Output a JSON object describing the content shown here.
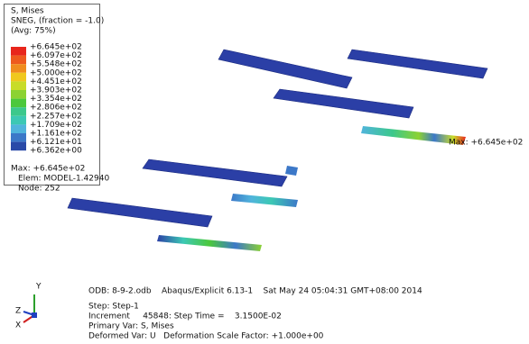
{
  "legend": {
    "title": [
      "S, Mises",
      "SNEG, (fraction = -1.0)",
      "(Avg: 75%)"
    ],
    "labels": [
      "+6.645e+02",
      "+6.097e+02",
      "+5.548e+02",
      "+5.000e+02",
      "+4.451e+02",
      "+3.903e+02",
      "+3.354e+02",
      "+2.806e+02",
      "+2.257e+02",
      "+1.709e+02",
      "+1.161e+02",
      "+6.121e+01",
      "+6.362e+00"
    ],
    "colors": [
      "#e8261c",
      "#ee5a1e",
      "#f08c1e",
      "#f0c81e",
      "#c8dc28",
      "#8cd232",
      "#4cc83c",
      "#3cc88c",
      "#3cc8b4",
      "#50b4dc",
      "#3c78c8",
      "#2a4aa8"
    ],
    "max": "Max: +6.645e+02",
    "elem": "Elem: MODEL-1.42940",
    "node": "Node: 252"
  },
  "annotation": "Max: +6.645e+02",
  "info": {
    "odb": "ODB: 8-9-2.odb    Abaqus/Explicit 6.13-1    Sat May 24 05:04:31 GMT+08:00 2014",
    "step": "Step: Step-1",
    "increment": "Increment     45848: Step Time =    3.1500E-02",
    "primary": "Primary Var: S, Mises",
    "deformed": "Deformed Var: U   Deformation Scale Factor: +1.000e+00"
  },
  "triad": {
    "y": "Y",
    "z": "Z",
    "x": "X"
  }
}
